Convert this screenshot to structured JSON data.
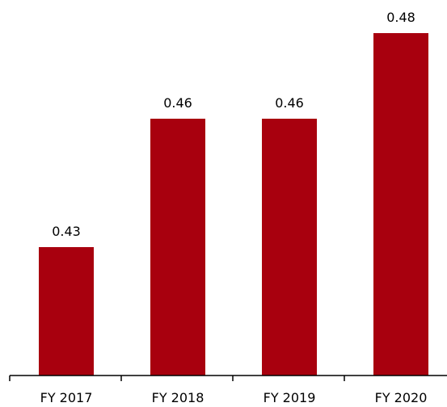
{
  "chart_data": {
    "type": "bar",
    "title": "",
    "xlabel": "",
    "ylabel": "",
    "categories": [
      "FY 2017",
      "FY 2018",
      "FY 2019",
      "FY 2020"
    ],
    "values": [
      0.43,
      0.46,
      0.46,
      0.48
    ],
    "value_labels": [
      "0.43",
      "0.46",
      "0.46",
      "0.48"
    ],
    "ylim": [
      0.4,
      0.48
    ],
    "grid": false,
    "legend": "none",
    "bar_color": "#A8000E",
    "axis_color": "#000000"
  }
}
